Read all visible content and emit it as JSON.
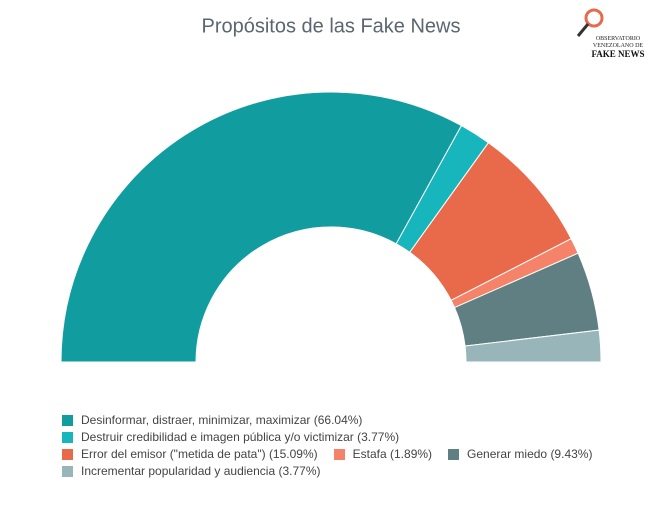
{
  "chart_data": {
    "type": "semi-donut",
    "title": "Propósitos de las Fake News",
    "logo": {
      "line1": "OBSERVATORIO",
      "line2": "VENEZOLANO DE",
      "line3": "FAKE NEWS"
    },
    "categories": [
      "Desinformar, distraer, minimizar, maximizar",
      "Destruir credibilidad e imagen pública y/o victimizar",
      "Error del emisor (\"metida de pata\")",
      "Estafa",
      "Generar miedo",
      "Incrementar popularidad y audiencia"
    ],
    "values": [
      66.04,
      3.77,
      15.09,
      1.89,
      9.43,
      3.77
    ],
    "value_labels": [
      "(66.04%)",
      "(3.77%)",
      "(15.09%)",
      "(1.89%)",
      "(9.43%)",
      "(3.77%)"
    ],
    "colors": [
      "#119ca0",
      "#17b6bc",
      "#e96a4b",
      "#f5836a",
      "#5f7f83",
      "#98b5ba"
    ]
  }
}
